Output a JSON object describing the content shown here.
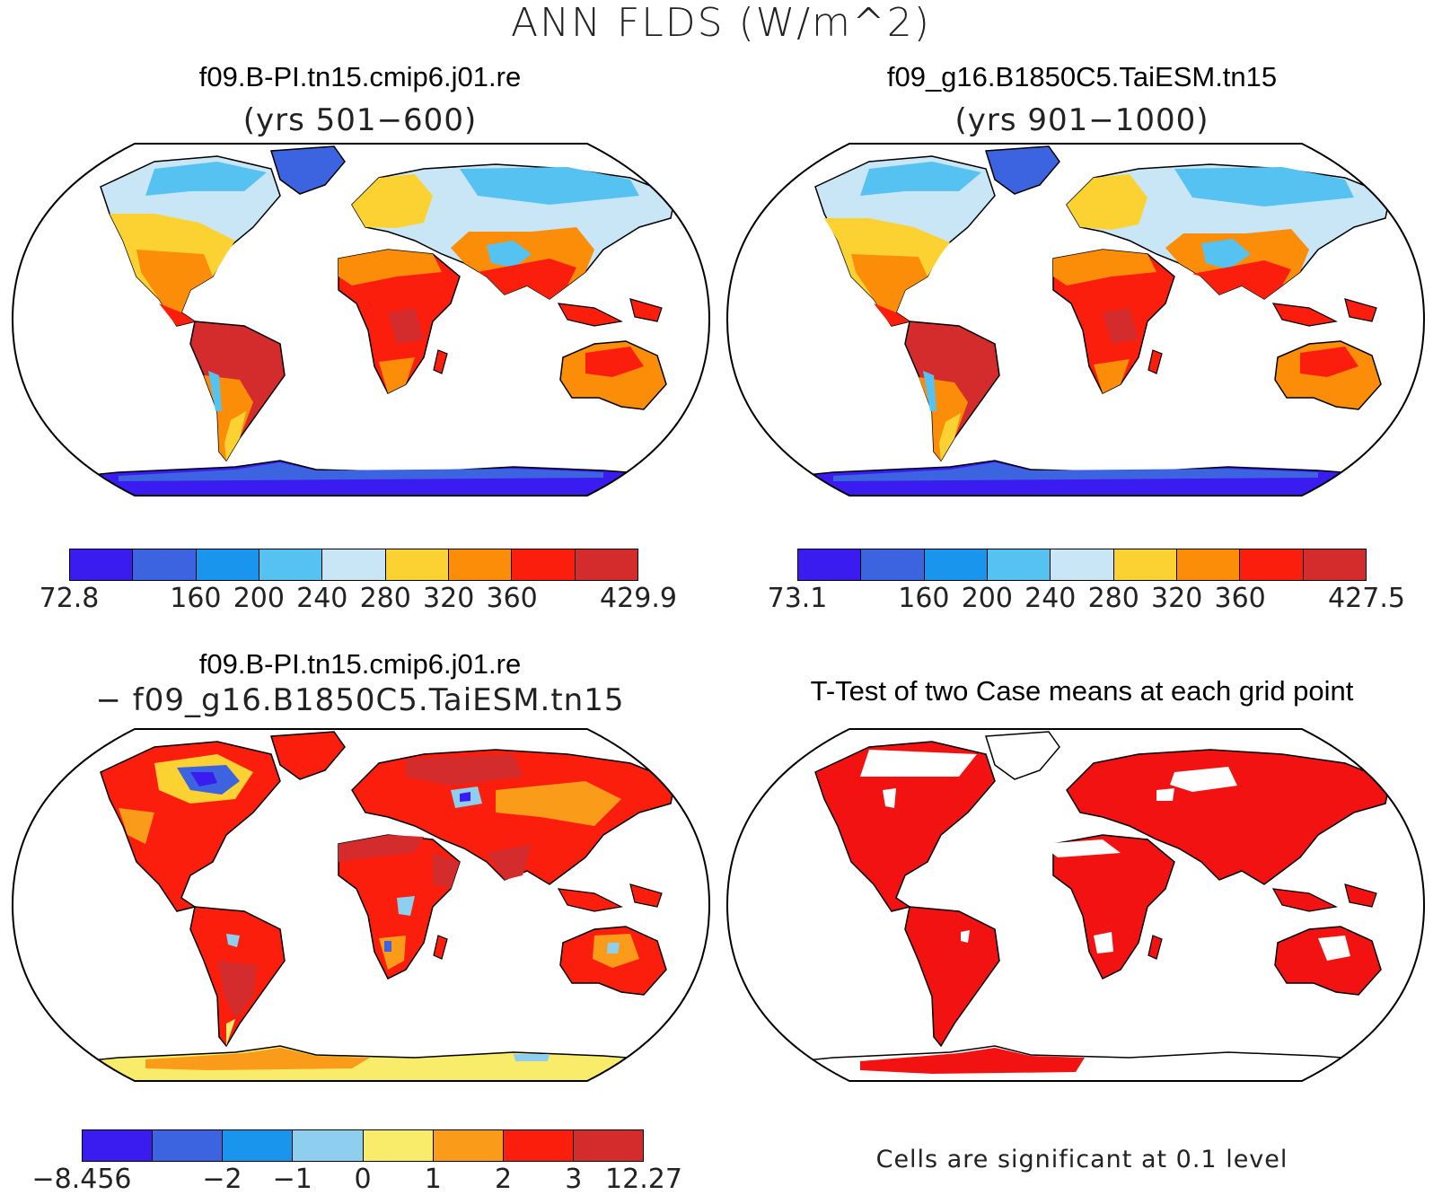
{
  "title": "ANN FLDS (W/m^2)",
  "panels": {
    "top_left": {
      "title": "f09.B-PI.tn15.cmip6.j01.re",
      "subtitle": "(yrs 501−600)",
      "colorbar": {
        "colors": [
          "#3a1cf0",
          "#3c63e0",
          "#1a95ee",
          "#55c2f2",
          "#c9e6f6",
          "#fbd232",
          "#fb8d08",
          "#fc1e0c",
          "#d42c2c"
        ],
        "tick_labels": [
          "72.8",
          "160",
          "200",
          "240",
          "280",
          "320",
          "360",
          "429.9"
        ]
      }
    },
    "top_right": {
      "title": "f09_g16.B1850C5.TaiESM.tn15",
      "subtitle": "(yrs 901−1000)",
      "colorbar": {
        "colors": [
          "#3a1cf0",
          "#3c63e0",
          "#1a95ee",
          "#55c2f2",
          "#c9e6f6",
          "#fbd232",
          "#fb8d08",
          "#fc1e0c",
          "#d42c2c"
        ],
        "tick_labels": [
          "73.1",
          "160",
          "200",
          "240",
          "280",
          "320",
          "360",
          "427.5"
        ]
      }
    },
    "bottom_left": {
      "title": "f09.B-PI.tn15.cmip6.j01.re",
      "subtitle": "− f09_g16.B1850C5.TaiESM.tn15",
      "colorbar": {
        "colors": [
          "#3a1cf0",
          "#3c63e0",
          "#1a95ee",
          "#8ecfef",
          "#f9ec6a",
          "#fb9b1a",
          "#fc1e0c",
          "#d42c2c"
        ],
        "tick_labels": [
          "−8.456",
          "−2",
          "−1",
          "0",
          "1",
          "2",
          "3",
          "12.27"
        ]
      }
    },
    "bottom_right": {
      "title": "T-Test of two Case means at each grid point",
      "note": "Cells are significant at 0.1 level"
    }
  },
  "colors": {
    "outline": "#000000",
    "significant": "#f21212",
    "ocean": "#ffffff"
  }
}
